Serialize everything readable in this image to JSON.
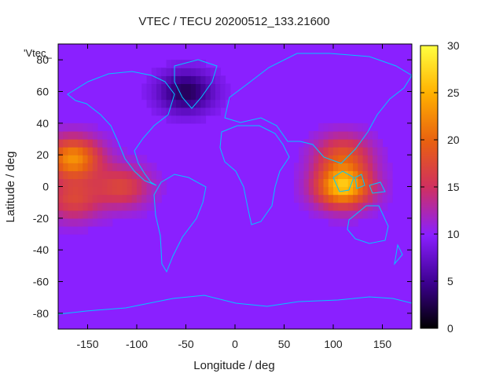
{
  "chart_data": {
    "type": "heatmap",
    "title": "VTEC / TECU 20200512_133.21600",
    "xlabel": "Longitude / deg",
    "ylabel": "Latitude / deg",
    "xlim": [
      -180,
      180
    ],
    "ylim": [
      -90,
      90
    ],
    "x_ticks": [
      -150,
      -100,
      -50,
      0,
      50,
      100,
      150
    ],
    "y_ticks": [
      -80,
      -60,
      -40,
      -20,
      0,
      20,
      40,
      60,
      80
    ],
    "colorbar": {
      "range": [
        0,
        30
      ],
      "ticks": [
        0,
        5,
        10,
        15,
        20,
        25,
        30
      ],
      "colors": [
        "#000000",
        "#3c0090",
        "#8a20ff",
        "#d0305f",
        "#e86010",
        "#ffb000",
        "#ffff40"
      ]
    },
    "legend_label": "'Vtec_",
    "background_level": 10,
    "features": [
      {
        "name": "pacific-anomaly-north",
        "lon": -165,
        "lat": 18,
        "peak": 23
      },
      {
        "name": "pacific-anomaly-south",
        "lon": -165,
        "lat": -8,
        "peak": 17
      },
      {
        "name": "south-america-anomaly",
        "lon": -115,
        "lat": 0,
        "peak": 17
      },
      {
        "name": "asia-anomaly-north",
        "lon": 110,
        "lat": 20,
        "peak": 18
      },
      {
        "name": "indonesia-anomaly-south",
        "lon": 110,
        "lat": 0,
        "peak": 26
      },
      {
        "name": "arctic-depletion",
        "lon": -50,
        "lat": 60,
        "peak": 3
      }
    ],
    "coastline_color": "#00c8ff"
  }
}
